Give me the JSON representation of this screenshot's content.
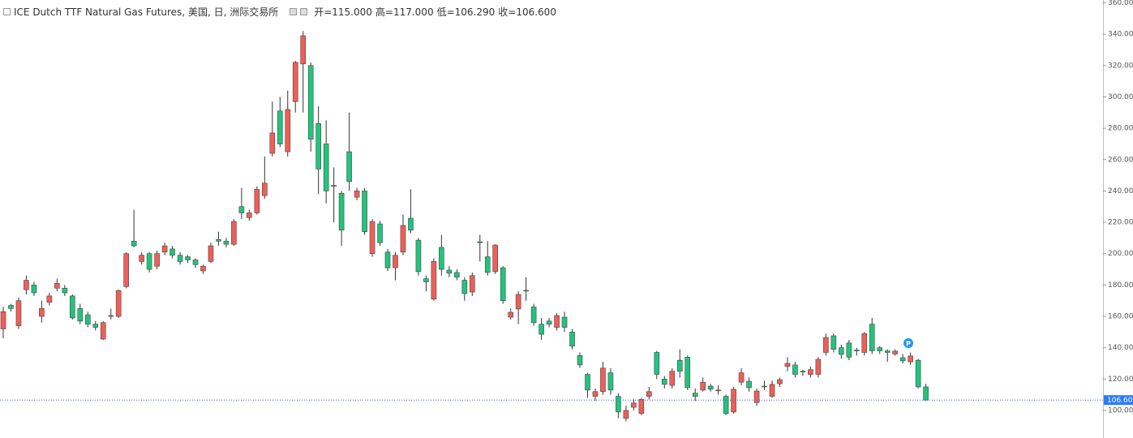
{
  "chart_data": {
    "type": "candlestick",
    "title": "ICE Dutch TTF Natural Gas Futures, 美国, 日, 洲际交易所",
    "ohlc_legend": [
      {
        "label": "开=",
        "value": "115.000"
      },
      {
        "label": "高=",
        "value": "117.000"
      },
      {
        "label": "低=",
        "value": "106.290"
      },
      {
        "label": "收=",
        "value": "106.600"
      }
    ],
    "up_color": "#ef5f57",
    "down_color": "#22c47d",
    "open": [
      152,
      167,
      154,
      177,
      180,
      160,
      169,
      178,
      178,
      173,
      165,
      161,
      155,
      145.5,
      160,
      160,
      179,
      208,
      195,
      200,
      192,
      201,
      203,
      199,
      198,
      196,
      189,
      195,
      209,
      208,
      206,
      230,
      223,
      226,
      237,
      264,
      291,
      265,
      297,
      321,
      320,
      283,
      270,
      243,
      238.5,
      265,
      236,
      240,
      200,
      219,
      201,
      191,
      201,
      222.6,
      208.6,
      184,
      171,
      204,
      189.5,
      188,
      183,
      175.5,
      207.6,
      198,
      188.5,
      191,
      159.5,
      164.7,
      176.6,
      166,
      155,
      157,
      153,
      159.5,
      150,
      135,
      123,
      109,
      112,
      124,
      109,
      95,
      102,
      98,
      109,
      137,
      120,
      116,
      132,
      134,
      111,
      113,
      115.5,
      113,
      109,
      99,
      118,
      118.6,
      105,
      115.5,
      109,
      117,
      128,
      129,
      125,
      123,
      123,
      137,
      147.6,
      140,
      143,
      138.5,
      137,
      155,
      140,
      138,
      136,
      133.6,
      131,
      132,
      115
    ],
    "high": [
      166,
      168,
      172,
      186,
      182,
      170,
      175,
      184,
      180,
      174,
      168,
      163,
      157,
      157,
      165,
      177,
      201,
      228,
      201,
      201,
      202,
      207,
      205,
      201,
      199,
      197,
      193,
      207,
      214,
      210,
      222,
      242,
      228,
      243,
      262,
      297,
      300,
      304,
      323,
      342,
      322,
      294,
      285,
      255,
      240,
      290,
      242,
      242,
      222,
      221,
      203,
      201,
      225,
      241,
      210,
      186,
      197,
      212,
      192,
      190,
      185,
      188,
      212,
      208,
      206,
      192,
      165,
      176,
      185,
      168,
      159,
      159,
      162,
      163,
      152,
      137,
      124,
      114,
      131,
      127,
      111,
      103,
      107,
      108,
      115,
      138,
      122,
      127,
      139,
      135,
      114,
      121,
      117,
      116,
      110,
      115,
      127,
      121,
      114,
      119,
      119,
      121,
      134,
      131,
      126,
      128,
      134,
      149,
      149,
      142,
      145,
      140,
      150,
      159,
      141,
      139,
      139,
      136,
      137,
      133,
      117
    ],
    "low": [
      146,
      163,
      152,
      174,
      173,
      156,
      167,
      176,
      173,
      158,
      155,
      153,
      151,
      145,
      158,
      159,
      178,
      204,
      193,
      188,
      190,
      199,
      197,
      193,
      194,
      191,
      187,
      194,
      205,
      204,
      205,
      222,
      221,
      225,
      235,
      262,
      268,
      262,
      290,
      290,
      265,
      238,
      232,
      220,
      205,
      240,
      234,
      212,
      198,
      205,
      189,
      183,
      199,
      213,
      186,
      176,
      170,
      186,
      185,
      183,
      170,
      173,
      195,
      186,
      187,
      168,
      158,
      155,
      170,
      154,
      145,
      153,
      151,
      150,
      139,
      127,
      108,
      106,
      110,
      110,
      95,
      93,
      100,
      97,
      107,
      120,
      114,
      114,
      121,
      113,
      106,
      112,
      112,
      110,
      97,
      98,
      116,
      112,
      103,
      113,
      108,
      115,
      125,
      121,
      122,
      121,
      121,
      135,
      137,
      133,
      132,
      135,
      135,
      136,
      136,
      131,
      135,
      130,
      129,
      114,
      106.29
    ],
    "close": [
      163,
      165,
      170,
      183,
      175,
      165,
      173,
      181,
      175,
      159,
      157,
      155,
      153,
      156,
      160.5,
      176.5,
      200,
      205,
      199,
      190,
      200,
      205,
      199,
      195,
      196,
      193,
      192,
      205,
      208,
      206,
      220.5,
      226,
      226,
      241,
      245,
      277,
      270,
      292,
      322,
      339,
      273,
      254,
      240,
      243.5,
      215,
      246,
      240,
      214,
      220.5,
      207,
      191,
      199,
      218,
      215,
      188.5,
      182,
      195,
      190,
      187.5,
      185,
      174.5,
      186,
      207,
      188,
      205.5,
      170,
      162.6,
      174,
      176.5,
      156,
      148.6,
      155,
      160.5,
      153,
      141,
      129,
      113,
      112,
      127,
      113,
      99,
      100,
      104.7,
      107,
      112,
      123,
      116.6,
      125,
      125,
      114.5,
      109,
      118,
      113.5,
      113,
      98,
      113.5,
      124,
      114.5,
      112.4,
      115,
      116.6,
      119.6,
      130,
      123,
      124.8,
      126,
      132.6,
      146.5,
      139,
      135.7,
      134,
      138,
      149,
      138,
      138,
      137,
      137.8,
      131.6,
      134.7,
      115,
      106.6
    ],
    "ylim": [
      82.4,
      361.8
    ],
    "yticks": [
      {
        "value": 100,
        "label": "100.000"
      },
      {
        "value": 120,
        "label": "120.000"
      },
      {
        "value": 140,
        "label": "140.000"
      },
      {
        "value": 160,
        "label": "160.000"
      },
      {
        "value": 180,
        "label": "180.000"
      },
      {
        "value": 200,
        "label": "200.000"
      },
      {
        "value": 220,
        "label": "220.000"
      },
      {
        "value": 240,
        "label": "240.000"
      },
      {
        "value": 260,
        "label": "260.000"
      },
      {
        "value": 280,
        "label": "280.000"
      },
      {
        "value": 300,
        "label": "300.000"
      },
      {
        "value": 320,
        "label": "320.000"
      },
      {
        "value": 340,
        "label": "340.000"
      },
      {
        "value": 360,
        "label": "360.000"
      }
    ],
    "last_price": {
      "value": 106.6,
      "label": "106.600"
    }
  }
}
